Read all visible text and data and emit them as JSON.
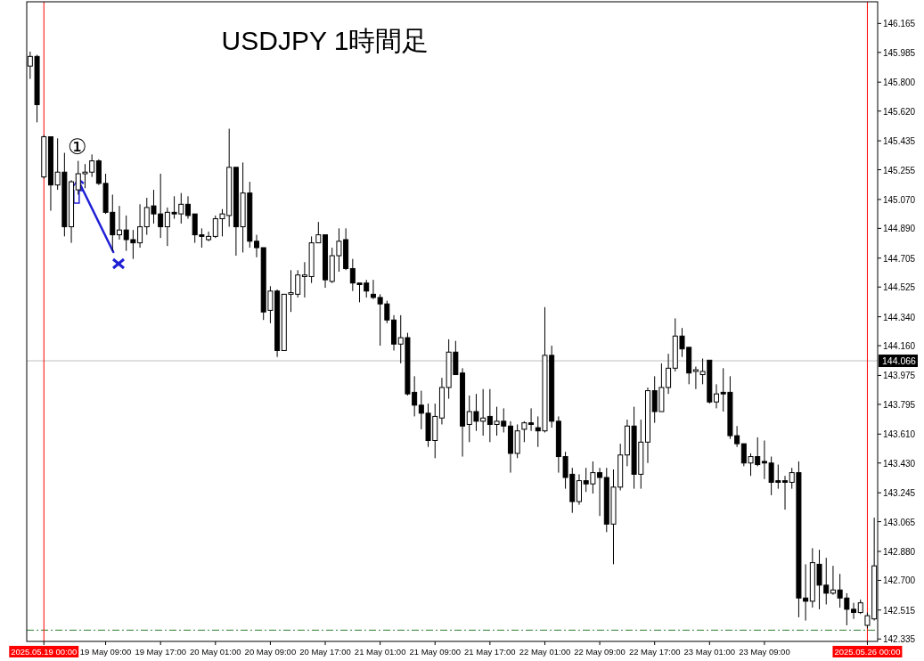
{
  "chart_data": {
    "type": "candlestick",
    "title": "USDJPY 1時間足",
    "categories": [
      null,
      null,
      "2025.05.19 00:00",
      null,
      null,
      null,
      null,
      null,
      null,
      null,
      null,
      "19 May 09:00",
      null,
      null,
      null,
      null,
      null,
      null,
      null,
      "19 May 17:00",
      null,
      null,
      null,
      null,
      null,
      null,
      null,
      "20 May 01:00",
      null,
      null,
      null,
      null,
      null,
      null,
      null,
      "20 May 09:00",
      null,
      null,
      null,
      null,
      null,
      null,
      null,
      "20 May 17:00",
      null,
      null,
      null,
      null,
      null,
      null,
      null,
      "21 May 01:00",
      null,
      null,
      null,
      null,
      null,
      null,
      null,
      "21 May 09:00",
      null,
      null,
      null,
      null,
      null,
      null,
      null,
      "21 May 17:00",
      null,
      null,
      null,
      null,
      null,
      null,
      null,
      "22 May 01:00",
      null,
      null,
      null,
      null,
      null,
      null,
      null,
      "22 May 09:00",
      null,
      null,
      null,
      null,
      null,
      null,
      null,
      "22 May 17:00",
      null,
      null,
      null,
      null,
      null,
      null,
      null,
      "23 May 01:00",
      null,
      null,
      null,
      null,
      null,
      null,
      null,
      "23 May 09:00",
      null,
      null,
      null,
      null,
      null,
      null,
      null,
      null,
      null,
      null,
      null,
      null,
      null,
      null,
      "2025.05.26 00:00",
      null
    ],
    "ohlc": [
      [
        145.9,
        145.99,
        145.82,
        145.96
      ],
      [
        145.96,
        145.97,
        145.55,
        145.66
      ],
      [
        145.21,
        145.47,
        145.2,
        145.46
      ],
      [
        145.46,
        145.46,
        145.0,
        145.16
      ],
      [
        145.16,
        145.45,
        145.13,
        145.24
      ],
      [
        145.24,
        145.36,
        144.84,
        144.9
      ],
      [
        144.9,
        145.19,
        144.8,
        145.18
      ],
      [
        145.13,
        145.31,
        145.1,
        145.23
      ],
      [
        145.23,
        145.29,
        145.14,
        145.24
      ],
      [
        145.24,
        145.35,
        145.21,
        145.31
      ],
      [
        145.31,
        145.32,
        145.16,
        145.17
      ],
      [
        145.17,
        145.23,
        144.98,
        144.99
      ],
      [
        144.99,
        145.1,
        144.75,
        144.85
      ],
      [
        144.85,
        145.03,
        144.82,
        144.88
      ],
      [
        144.88,
        144.97,
        144.75,
        144.82
      ],
      [
        144.82,
        144.88,
        144.7,
        144.8
      ],
      [
        144.8,
        145.04,
        144.77,
        144.9
      ],
      [
        144.9,
        145.08,
        144.85,
        145.02
      ],
      [
        145.03,
        145.13,
        144.92,
        144.98
      ],
      [
        144.98,
        145.23,
        144.83,
        144.9
      ],
      [
        144.9,
        145.02,
        144.78,
        144.99
      ],
      [
        144.99,
        145.09,
        144.95,
        144.98
      ],
      [
        144.98,
        145.11,
        144.92,
        145.04
      ],
      [
        145.04,
        145.09,
        144.95,
        144.97
      ],
      [
        144.98,
        144.98,
        144.8,
        144.85
      ],
      [
        144.85,
        144.89,
        144.77,
        144.84
      ],
      [
        144.82,
        144.87,
        144.81,
        144.84
      ],
      [
        144.84,
        144.97,
        144.83,
        144.95
      ],
      [
        144.95,
        145.01,
        144.84,
        144.98
      ],
      [
        144.97,
        145.51,
        144.9,
        145.27
      ],
      [
        145.27,
        145.27,
        144.72,
        144.9
      ],
      [
        144.9,
        145.3,
        144.74,
        145.11
      ],
      [
        145.11,
        145.18,
        144.77,
        144.81
      ],
      [
        144.81,
        144.85,
        144.71,
        144.77
      ],
      [
        144.77,
        144.77,
        144.32,
        144.37
      ],
      [
        144.38,
        144.53,
        144.3,
        144.5
      ],
      [
        144.5,
        144.51,
        144.09,
        144.13
      ],
      [
        144.13,
        144.48,
        144.13,
        144.48
      ],
      [
        144.48,
        144.63,
        144.37,
        144.49
      ],
      [
        144.48,
        144.63,
        144.46,
        144.6
      ],
      [
        144.59,
        144.68,
        144.46,
        144.6
      ],
      [
        144.59,
        144.84,
        144.55,
        144.8
      ],
      [
        144.8,
        144.93,
        144.8,
        144.85
      ],
      [
        144.85,
        144.85,
        144.52,
        144.57
      ],
      [
        144.56,
        144.77,
        144.55,
        144.72
      ],
      [
        144.72,
        144.89,
        144.62,
        144.81
      ],
      [
        144.82,
        144.89,
        144.63,
        144.64
      ],
      [
        144.64,
        144.7,
        144.5,
        144.55
      ],
      [
        144.55,
        144.55,
        144.43,
        144.54
      ],
      [
        144.55,
        144.57,
        144.46,
        144.5
      ],
      [
        144.48,
        144.57,
        144.45,
        144.46
      ],
      [
        144.46,
        144.48,
        144.16,
        144.42
      ],
      [
        144.42,
        144.44,
        144.3,
        144.32
      ],
      [
        144.32,
        144.35,
        144.13,
        144.17
      ],
      [
        144.17,
        144.35,
        144.05,
        144.21
      ],
      [
        144.21,
        144.24,
        143.85,
        143.86
      ],
      [
        143.87,
        143.97,
        143.72,
        143.79
      ],
      [
        143.79,
        143.88,
        143.64,
        143.74
      ],
      [
        143.74,
        143.8,
        143.53,
        143.57
      ],
      [
        143.57,
        143.8,
        143.46,
        143.72
      ],
      [
        143.71,
        143.96,
        143.67,
        143.9
      ],
      [
        143.9,
        144.2,
        143.83,
        144.12
      ],
      [
        144.12,
        144.19,
        143.98,
        143.98
      ],
      [
        143.99,
        144.02,
        143.47,
        143.66
      ],
      [
        143.67,
        143.85,
        143.56,
        143.75
      ],
      [
        143.75,
        143.86,
        143.63,
        143.69
      ],
      [
        143.69,
        143.89,
        143.6,
        143.71
      ],
      [
        143.72,
        143.89,
        143.56,
        143.67
      ],
      [
        143.67,
        143.78,
        143.6,
        143.69
      ],
      [
        143.69,
        143.77,
        143.62,
        143.66
      ],
      [
        143.66,
        143.69,
        143.37,
        143.49
      ],
      [
        143.49,
        143.67,
        143.46,
        143.63
      ],
      [
        143.64,
        143.69,
        143.56,
        143.68
      ],
      [
        143.68,
        143.77,
        143.63,
        143.67
      ],
      [
        143.65,
        143.72,
        143.53,
        143.63
      ],
      [
        143.63,
        144.4,
        143.62,
        144.1
      ],
      [
        144.1,
        144.16,
        143.65,
        143.69
      ],
      [
        143.69,
        143.72,
        143.37,
        143.47
      ],
      [
        143.47,
        143.5,
        143.27,
        143.34
      ],
      [
        143.36,
        143.4,
        143.12,
        143.19
      ],
      [
        143.19,
        143.36,
        143.17,
        143.32
      ],
      [
        143.32,
        143.4,
        143.25,
        143.3
      ],
      [
        143.3,
        143.44,
        143.24,
        143.37
      ],
      [
        143.37,
        143.4,
        143.1,
        143.34
      ],
      [
        143.34,
        143.4,
        143.0,
        143.05
      ],
      [
        143.05,
        143.39,
        142.8,
        143.28
      ],
      [
        143.28,
        143.55,
        143.26,
        143.48
      ],
      [
        143.48,
        143.7,
        143.41,
        143.66
      ],
      [
        143.66,
        143.78,
        143.27,
        143.36
      ],
      [
        143.36,
        143.7,
        143.27,
        143.56
      ],
      [
        143.56,
        143.9,
        143.43,
        143.88
      ],
      [
        143.88,
        143.97,
        143.68,
        143.75
      ],
      [
        143.75,
        144.05,
        143.75,
        143.9
      ],
      [
        143.9,
        144.11,
        143.86,
        144.02
      ],
      [
        144.02,
        144.33,
        144.0,
        144.22
      ],
      [
        144.22,
        144.27,
        144.09,
        144.14
      ],
      [
        144.15,
        144.15,
        143.92,
        143.99
      ],
      [
        144.0,
        144.03,
        143.89,
        144.01
      ],
      [
        143.98,
        144.08,
        143.92,
        144.0
      ],
      [
        144.07,
        144.07,
        143.8,
        143.81
      ],
      [
        143.81,
        143.92,
        143.77,
        143.86
      ],
      [
        143.87,
        144.02,
        143.75,
        143.86
      ],
      [
        143.87,
        143.97,
        143.58,
        143.6
      ],
      [
        143.6,
        143.66,
        143.53,
        143.55
      ],
      [
        143.55,
        143.55,
        143.41,
        143.43
      ],
      [
        143.43,
        143.49,
        143.35,
        143.47
      ],
      [
        143.47,
        143.59,
        143.41,
        143.42
      ],
      [
        143.44,
        143.57,
        143.33,
        143.43
      ],
      [
        143.43,
        143.47,
        143.23,
        143.31
      ],
      [
        143.32,
        143.42,
        143.27,
        143.31
      ],
      [
        143.32,
        143.35,
        143.14,
        143.31
      ],
      [
        143.31,
        143.4,
        143.27,
        143.37
      ],
      [
        143.37,
        143.44,
        142.47,
        142.59
      ],
      [
        142.59,
        142.8,
        142.45,
        142.57
      ],
      [
        142.57,
        142.9,
        142.53,
        142.81
      ],
      [
        142.8,
        142.89,
        142.52,
        142.67
      ],
      [
        142.67,
        142.84,
        142.55,
        142.62
      ],
      [
        142.62,
        142.79,
        142.61,
        142.64
      ],
      [
        142.64,
        142.74,
        142.53,
        142.59
      ],
      [
        142.59,
        142.62,
        142.42,
        142.52
      ],
      [
        142.52,
        142.56,
        142.46,
        142.5
      ],
      [
        142.5,
        142.58,
        142.49,
        142.56
      ],
      [
        142.42,
        142.5,
        142.4,
        142.48
      ],
      [
        142.46,
        143.09,
        142.45,
        142.79
      ]
    ],
    "ylim": [
      142.32,
      146.3
    ],
    "yticks": [
      146.165,
      145.985,
      {
        "value": 145.8,
        "label": "145.800"
      },
      {
        "value": 145.62,
        "label": "145.620"
      },
      145.435,
      145.255,
      {
        "value": 145.07,
        "label": "145.070"
      },
      {
        "value": 144.89,
        "label": "144.890"
      },
      144.705,
      144.525,
      {
        "value": 144.34,
        "label": "144.340"
      },
      {
        "value": 144.16,
        "label": "144.160"
      },
      143.975,
      143.795,
      {
        "value": 143.61,
        "label": "143.610"
      },
      {
        "value": 143.43,
        "label": "143.430"
      },
      143.245,
      143.065,
      {
        "value": 142.88,
        "label": "142.880"
      },
      {
        "value": 142.7,
        "label": "142.700"
      },
      142.515,
      142.335
    ],
    "ref_lines": [
      {
        "axis": "y",
        "value": 144.066,
        "label": "144.066",
        "color": "#c0c0c0"
      },
      {
        "axis": "y",
        "value": 142.39,
        "color": "#2e7d32",
        "line_style": "dashed"
      },
      {
        "axis": "x",
        "value": "2025.05.19 00:00",
        "color": "#ff0000"
      },
      {
        "axis": "x",
        "value": "2025.05.26 00:00",
        "color": "#ff0000"
      }
    ],
    "annotations": [
      {
        "text": "①",
        "y": 145.2
      }
    ]
  }
}
